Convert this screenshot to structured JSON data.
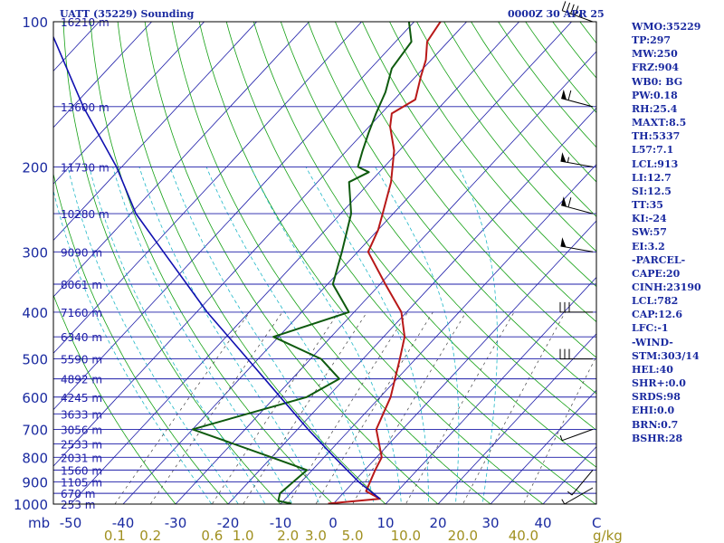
{
  "header": {
    "left_title": "UATT (35229) Sounding",
    "right_title": "0000Z 30 APR 25"
  },
  "indices": [
    "WMO:35229",
    "TP:297",
    "MW:250",
    "FRZ:904",
    "WB0: BG",
    "PW:0.18",
    "RH:25.4",
    "MAXT:8.5",
    "TH:5337",
    "L57:7.1",
    "LCL:913",
    "LI:12.7",
    "SI:12.5",
    "TT:35",
    "KI:-24",
    "SW:57",
    "EI:3.2",
    "-PARCEL-",
    "CAPE:20",
    "CINH:23190",
    "LCL:782",
    "CAP:12.6",
    "LFC:-1",
    "-WIND-",
    "STM:303/14",
    "HEL:40",
    "SHR+:0.0",
    "SRDS:98",
    "EHI:0.0",
    "BRN:0.7",
    "BSHR:28"
  ],
  "colors": {
    "frame": "#000000",
    "isobar": "#1c1ca8",
    "isotherm": "#1c1ca8",
    "dry_adiabat": "#14a014",
    "moist_adiabat": "#20b8c8",
    "mixing_ratio": "#404040",
    "temperature": "#b81818",
    "dewpoint": "#0e5a0e",
    "parcel": "#1010b0",
    "label_blue": "#1a2aa0",
    "label_olive": "#a09020"
  },
  "chart_data": {
    "type": "line",
    "title": "UATT (35229) Sounding",
    "subtitle": "0000Z 30 APR 25",
    "xlabel": "",
    "ylabel": "mb",
    "y_scale": "log",
    "y_range_mb": [
      100,
      1000
    ],
    "skew": "temperature lines slant to the upper right",
    "pressure_ticks_mb": [
      100,
      200,
      300,
      400,
      500,
      600,
      700,
      800,
      900,
      1000
    ],
    "pressure_tick_labels": [
      "100",
      "200",
      "300",
      "400",
      "500",
      "600",
      "700",
      "800",
      "900",
      "1000"
    ],
    "temperature_ticks_c": [
      -50,
      -40,
      -30,
      -20,
      -10,
      0,
      10,
      20,
      30,
      40
    ],
    "temperature_tick_labels": [
      "-50",
      "-40",
      "-30",
      "-20",
      "-10",
      "0",
      "10",
      "20",
      "30",
      "40"
    ],
    "axis_corner_labels": [
      "mb",
      "C",
      "g/kg"
    ],
    "mixing_ratio_labels": [
      {
        "value": 0.1,
        "text": "0.1"
      },
      {
        "value": 0.2,
        "text": "0.2"
      },
      {
        "value": 0.6,
        "text": "0.6"
      },
      {
        "value": 1.0,
        "text": "1.0"
      },
      {
        "value": 2.0,
        "text": "2.0"
      },
      {
        "value": 3.0,
        "text": "3.0"
      },
      {
        "value": 5.0,
        "text": "5.0"
      },
      {
        "value": 10.0,
        "text": "10.0"
      },
      {
        "value": 20.0,
        "text": "20.0"
      },
      {
        "value": 40.0,
        "text": "40.0"
      }
    ],
    "height_labels": [
      {
        "p": 100,
        "text": "16210 m"
      },
      {
        "p": 150,
        "text": "13600 m"
      },
      {
        "p": 200,
        "text": "11730 m"
      },
      {
        "p": 250,
        "text": "10280 m"
      },
      {
        "p": 300,
        "text": "9090 m"
      },
      {
        "p": 350,
        "text": "8061 m"
      },
      {
        "p": 400,
        "text": "7160 m"
      },
      {
        "p": 450,
        "text": "6340 m"
      },
      {
        "p": 500,
        "text": "5590 m"
      },
      {
        "p": 550,
        "text": "4892 m"
      },
      {
        "p": 600,
        "text": "4245 m"
      },
      {
        "p": 650,
        "text": "3633 m"
      },
      {
        "p": 700,
        "text": "3056 m"
      },
      {
        "p": 750,
        "text": "2533 m"
      },
      {
        "p": 800,
        "text": "2031 m"
      },
      {
        "p": 850,
        "text": "1560 m"
      },
      {
        "p": 900,
        "text": "1105 m"
      },
      {
        "p": 950,
        "text": "670 m"
      },
      {
        "p": 1000,
        "text": "253 m"
      }
    ],
    "series": [
      {
        "name": "Temperature",
        "points": [
          [
            998,
            -1
          ],
          [
            975,
            8
          ],
          [
            940,
            4
          ],
          [
            850,
            2
          ],
          [
            800,
            1
          ],
          [
            700,
            -5
          ],
          [
            600,
            -8
          ],
          [
            500,
            -13
          ],
          [
            450,
            -16
          ],
          [
            400,
            -21
          ],
          [
            350,
            -29
          ],
          [
            300,
            -38
          ],
          [
            270,
            -40
          ],
          [
            250,
            -42
          ],
          [
            215,
            -46
          ],
          [
            185,
            -51
          ],
          [
            165,
            -56
          ],
          [
            155,
            -58
          ],
          [
            145,
            -56
          ],
          [
            130,
            -59
          ],
          [
            120,
            -61
          ],
          [
            110,
            -64
          ],
          [
            100,
            -65
          ]
        ]
      },
      {
        "name": "Dewpoint",
        "points": [
          [
            998,
            -8
          ],
          [
            985,
            -11
          ],
          [
            950,
            -12
          ],
          [
            850,
            -11
          ],
          [
            800,
            -20
          ],
          [
            700,
            -40
          ],
          [
            600,
            -24
          ],
          [
            550,
            -21
          ],
          [
            500,
            -28
          ],
          [
            450,
            -41
          ],
          [
            400,
            -31
          ],
          [
            350,
            -39
          ],
          [
            300,
            -43
          ],
          [
            250,
            -48
          ],
          [
            215,
            -54
          ],
          [
            205,
            -52
          ],
          [
            200,
            -55
          ],
          [
            185,
            -57
          ],
          [
            170,
            -59
          ],
          [
            155,
            -61
          ],
          [
            140,
            -63
          ],
          [
            125,
            -66
          ],
          [
            110,
            -67
          ],
          [
            100,
            -71
          ]
        ]
      },
      {
        "name": "Parcel",
        "points": [
          [
            975,
            8
          ],
          [
            900,
            1
          ],
          [
            800,
            -8
          ],
          [
            700,
            -18
          ],
          [
            600,
            -29
          ],
          [
            500,
            -42
          ],
          [
            400,
            -58
          ],
          [
            300,
            -77
          ],
          [
            250,
            -89
          ],
          [
            200,
            -101
          ],
          [
            150,
            -118
          ],
          [
            100,
            -140
          ]
        ]
      }
    ],
    "wind_barbs": [
      {
        "p": 100,
        "dir": 250,
        "kt": 45
      },
      {
        "p": 150,
        "dir": 255,
        "kt": 60
      },
      {
        "p": 200,
        "dir": 260,
        "kt": 55
      },
      {
        "p": 250,
        "dir": 255,
        "kt": 60
      },
      {
        "p": 300,
        "dir": 260,
        "kt": 50
      },
      {
        "p": 400,
        "dir": 270,
        "kt": 30
      },
      {
        "p": 500,
        "dir": 270,
        "kt": 30
      },
      {
        "p": 700,
        "dir": 290,
        "kt": 5
      },
      {
        "p": 850,
        "dir": 320,
        "kt": 5
      },
      {
        "p": 925,
        "dir": 300,
        "kt": 5
      }
    ]
  }
}
